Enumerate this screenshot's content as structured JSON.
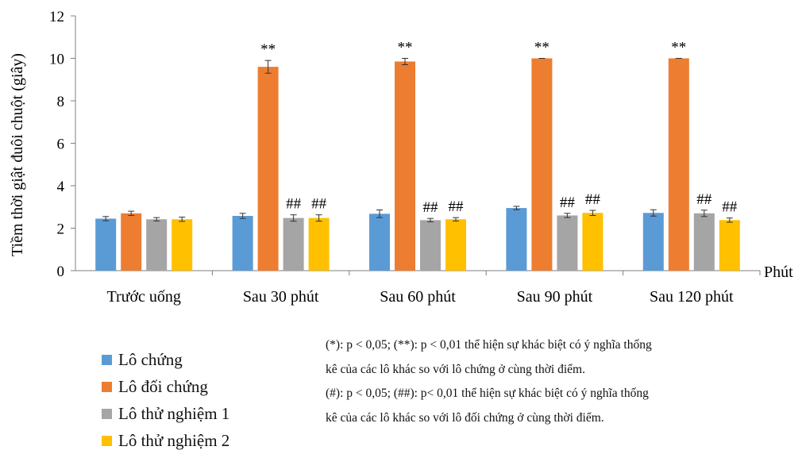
{
  "chart_data": {
    "type": "bar",
    "ylabel": "Tiềm thời giật đuôi chuột (giây)",
    "xlabel": "Phút",
    "ylim": [
      0,
      12
    ],
    "yticks": [
      "0",
      "2",
      "4",
      "6",
      "8",
      "10",
      "12"
    ],
    "categories": [
      "Trước uống",
      "Sau 30 phút",
      "Sau 60 phút",
      "Sau 90 phút",
      "Sau 120 phút"
    ],
    "series": [
      {
        "name": "Lô chứng",
        "color": "#5B9BD5",
        "values": [
          2.45,
          2.58,
          2.68,
          2.95,
          2.72
        ],
        "errors": [
          0.1,
          0.12,
          0.18,
          0.08,
          0.15
        ],
        "marks": [
          "",
          "",
          "",
          "",
          ""
        ]
      },
      {
        "name": "Lô đối chứng",
        "color": "#ED7D31",
        "values": [
          2.7,
          9.6,
          9.85,
          10.0,
          10.0
        ],
        "errors": [
          0.1,
          0.3,
          0.15,
          0.0,
          0.0
        ],
        "marks": [
          "",
          "**",
          "**",
          "**",
          "**"
        ]
      },
      {
        "name": "Lô thử nghiệm 1",
        "color": "#A5A5A5",
        "values": [
          2.42,
          2.48,
          2.38,
          2.6,
          2.7
        ],
        "errors": [
          0.08,
          0.15,
          0.08,
          0.1,
          0.15
        ],
        "marks": [
          "",
          "##",
          "##",
          "##",
          "##"
        ]
      },
      {
        "name": "Lô thử nghiệm 2",
        "color": "#FFC000",
        "values": [
          2.42,
          2.48,
          2.42,
          2.72,
          2.38
        ],
        "errors": [
          0.1,
          0.15,
          0.08,
          0.12,
          0.1
        ],
        "marks": [
          "",
          "##",
          "##",
          "##",
          "##"
        ]
      }
    ],
    "legend_position": "bottom-left",
    "grid": false
  },
  "notes": [
    "(*): p < 0,05; (**): p < 0,01 thể hiện sự khác biệt có ý nghĩa thống",
    "kê của các lô khác so với lô chứng ở cùng thời điểm.",
    "(#): p < 0,05; (##): p< 0,01 thể hiện sự khác biệt có ý nghĩa thống",
    "kê của các lô khác so với lô đối chứng ở cùng thời điểm."
  ]
}
